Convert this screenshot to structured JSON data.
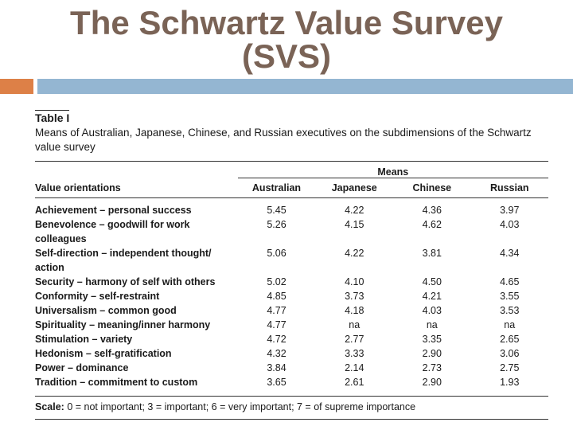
{
  "slide": {
    "title_line1": "The Schwartz Value Survey",
    "title_line2": "(SVS)"
  },
  "table": {
    "label": "Table I",
    "caption": "Means of Australian, Japanese, Chinese, and Russian executives on the subdimensions of the Schwartz value survey",
    "means_header": "Means",
    "columns": [
      "Value orientations",
      "Australian",
      "Japanese",
      "Chinese",
      "Russian"
    ],
    "rows": [
      {
        "orientation": "Achievement – personal success",
        "values": [
          "5.45",
          "4.22",
          "4.36",
          "3.97"
        ]
      },
      {
        "orientation": "Benevolence – goodwill for work colleagues",
        "values": [
          "5.26",
          "4.15",
          "4.62",
          "4.03"
        ]
      },
      {
        "orientation": "Self-direction – independent thought/ action",
        "values": [
          "5.06",
          "4.22",
          "3.81",
          "4.34"
        ]
      },
      {
        "orientation": "Security – harmony of self with others",
        "values": [
          "5.02",
          "4.10",
          "4.50",
          "4.65"
        ]
      },
      {
        "orientation": "Conformity – self-restraint",
        "values": [
          "4.85",
          "3.73",
          "4.21",
          "3.55"
        ]
      },
      {
        "orientation": "Universalism – common good",
        "values": [
          "4.77",
          "4.18",
          "4.03",
          "3.53"
        ]
      },
      {
        "orientation": "Spirituality – meaning/inner harmony",
        "values": [
          "4.77",
          "na",
          "na",
          "na"
        ]
      },
      {
        "orientation": "Stimulation – variety",
        "values": [
          "4.72",
          "2.77",
          "3.35",
          "2.65"
        ]
      },
      {
        "orientation": "Hedonism – self-gratification",
        "values": [
          "4.32",
          "3.33",
          "2.90",
          "3.06"
        ]
      },
      {
        "orientation": "Power – dominance",
        "values": [
          "3.84",
          "2.14",
          "2.73",
          "2.75"
        ]
      },
      {
        "orientation": "Tradition – commitment to custom",
        "values": [
          "3.65",
          "2.61",
          "2.90",
          "1.93"
        ]
      }
    ],
    "scale_label": "Scale:",
    "scale_text": "0 = not important; 3 = important; 6 = very important; 7 = of supreme importance"
  },
  "colors": {
    "title": "#7a6356",
    "accent_orange": "#dd8047",
    "accent_blue": "#94b6d2"
  }
}
